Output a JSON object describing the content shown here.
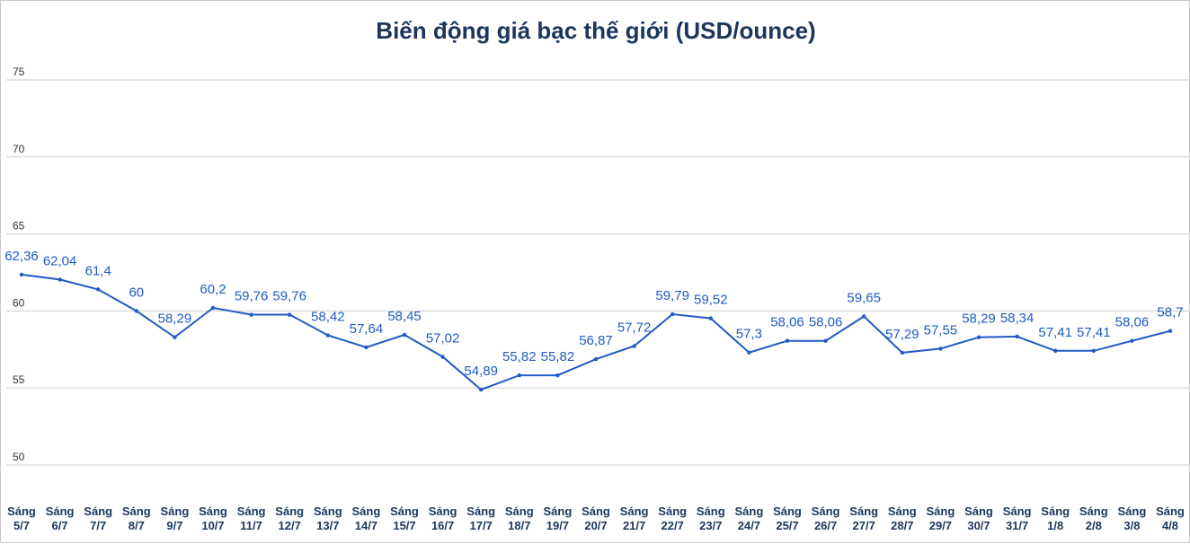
{
  "chart_data": {
    "type": "line",
    "title": "Biến động giá bạc thế giới (USD/ounce)",
    "xlabel": "",
    "ylabel": "",
    "ylim": [
      50,
      75
    ],
    "yticks": [
      "50",
      "55",
      "60",
      "65",
      "70",
      "75"
    ],
    "grid": true,
    "legend": "none",
    "line_color": "#1f5bc4",
    "categories": [
      [
        "Sáng",
        "5/7"
      ],
      [
        "Sáng",
        "6/7"
      ],
      [
        "Sáng",
        "7/7"
      ],
      [
        "Sáng",
        "8/7"
      ],
      [
        "Sáng",
        "9/7"
      ],
      [
        "Sáng",
        "10/7"
      ],
      [
        "Sáng",
        "11/7"
      ],
      [
        "Sáng",
        "12/7"
      ],
      [
        "Sáng",
        "13/7"
      ],
      [
        "Sáng",
        "14/7"
      ],
      [
        "Sáng",
        "15/7"
      ],
      [
        "Sáng",
        "16/7"
      ],
      [
        "Sáng",
        "17/7"
      ],
      [
        "Sáng",
        "18/7"
      ],
      [
        "Sáng",
        "19/7"
      ],
      [
        "Sáng",
        "20/7"
      ],
      [
        "Sáng",
        "21/7"
      ],
      [
        "Sáng",
        "22/7"
      ],
      [
        "Sáng",
        "23/7"
      ],
      [
        "Sáng",
        "24/7"
      ],
      [
        "Sáng",
        "25/7"
      ],
      [
        "Sáng",
        "26/7"
      ],
      [
        "Sáng",
        "27/7"
      ],
      [
        "Sáng",
        "28/7"
      ],
      [
        "Sáng",
        "29/7"
      ],
      [
        "Sáng",
        "30/7"
      ],
      [
        "Sáng",
        "31/7"
      ],
      [
        "Sáng",
        "1/8"
      ],
      [
        "Sáng",
        "2/8"
      ],
      [
        "Sáng",
        "3/8"
      ],
      [
        "Sáng",
        "4/8"
      ]
    ],
    "values": [
      62.36,
      62.04,
      61.4,
      60,
      58.29,
      60.2,
      59.76,
      59.76,
      58.42,
      57.64,
      58.45,
      57.02,
      54.89,
      55.82,
      55.82,
      56.87,
      57.72,
      59.79,
      59.52,
      57.3,
      58.06,
      58.06,
      59.65,
      57.29,
      57.55,
      58.29,
      58.34,
      57.41,
      57.41,
      58.06,
      58.7
    ],
    "data_labels": [
      "62,36",
      "62,04",
      "61,4",
      "60",
      "58,29",
      "60,2",
      "59,76",
      "59,76",
      "58,42",
      "57,64",
      "58,45",
      "57,02",
      "54,89",
      "55,82",
      "55,82",
      "56,87",
      "57,72",
      "59,79",
      "59,52",
      "57,3",
      "58,06",
      "58,06",
      "59,65",
      "57,29",
      "57,55",
      "58,29",
      "58,34",
      "57,41",
      "57,41",
      "58,06",
      "58,7"
    ]
  }
}
